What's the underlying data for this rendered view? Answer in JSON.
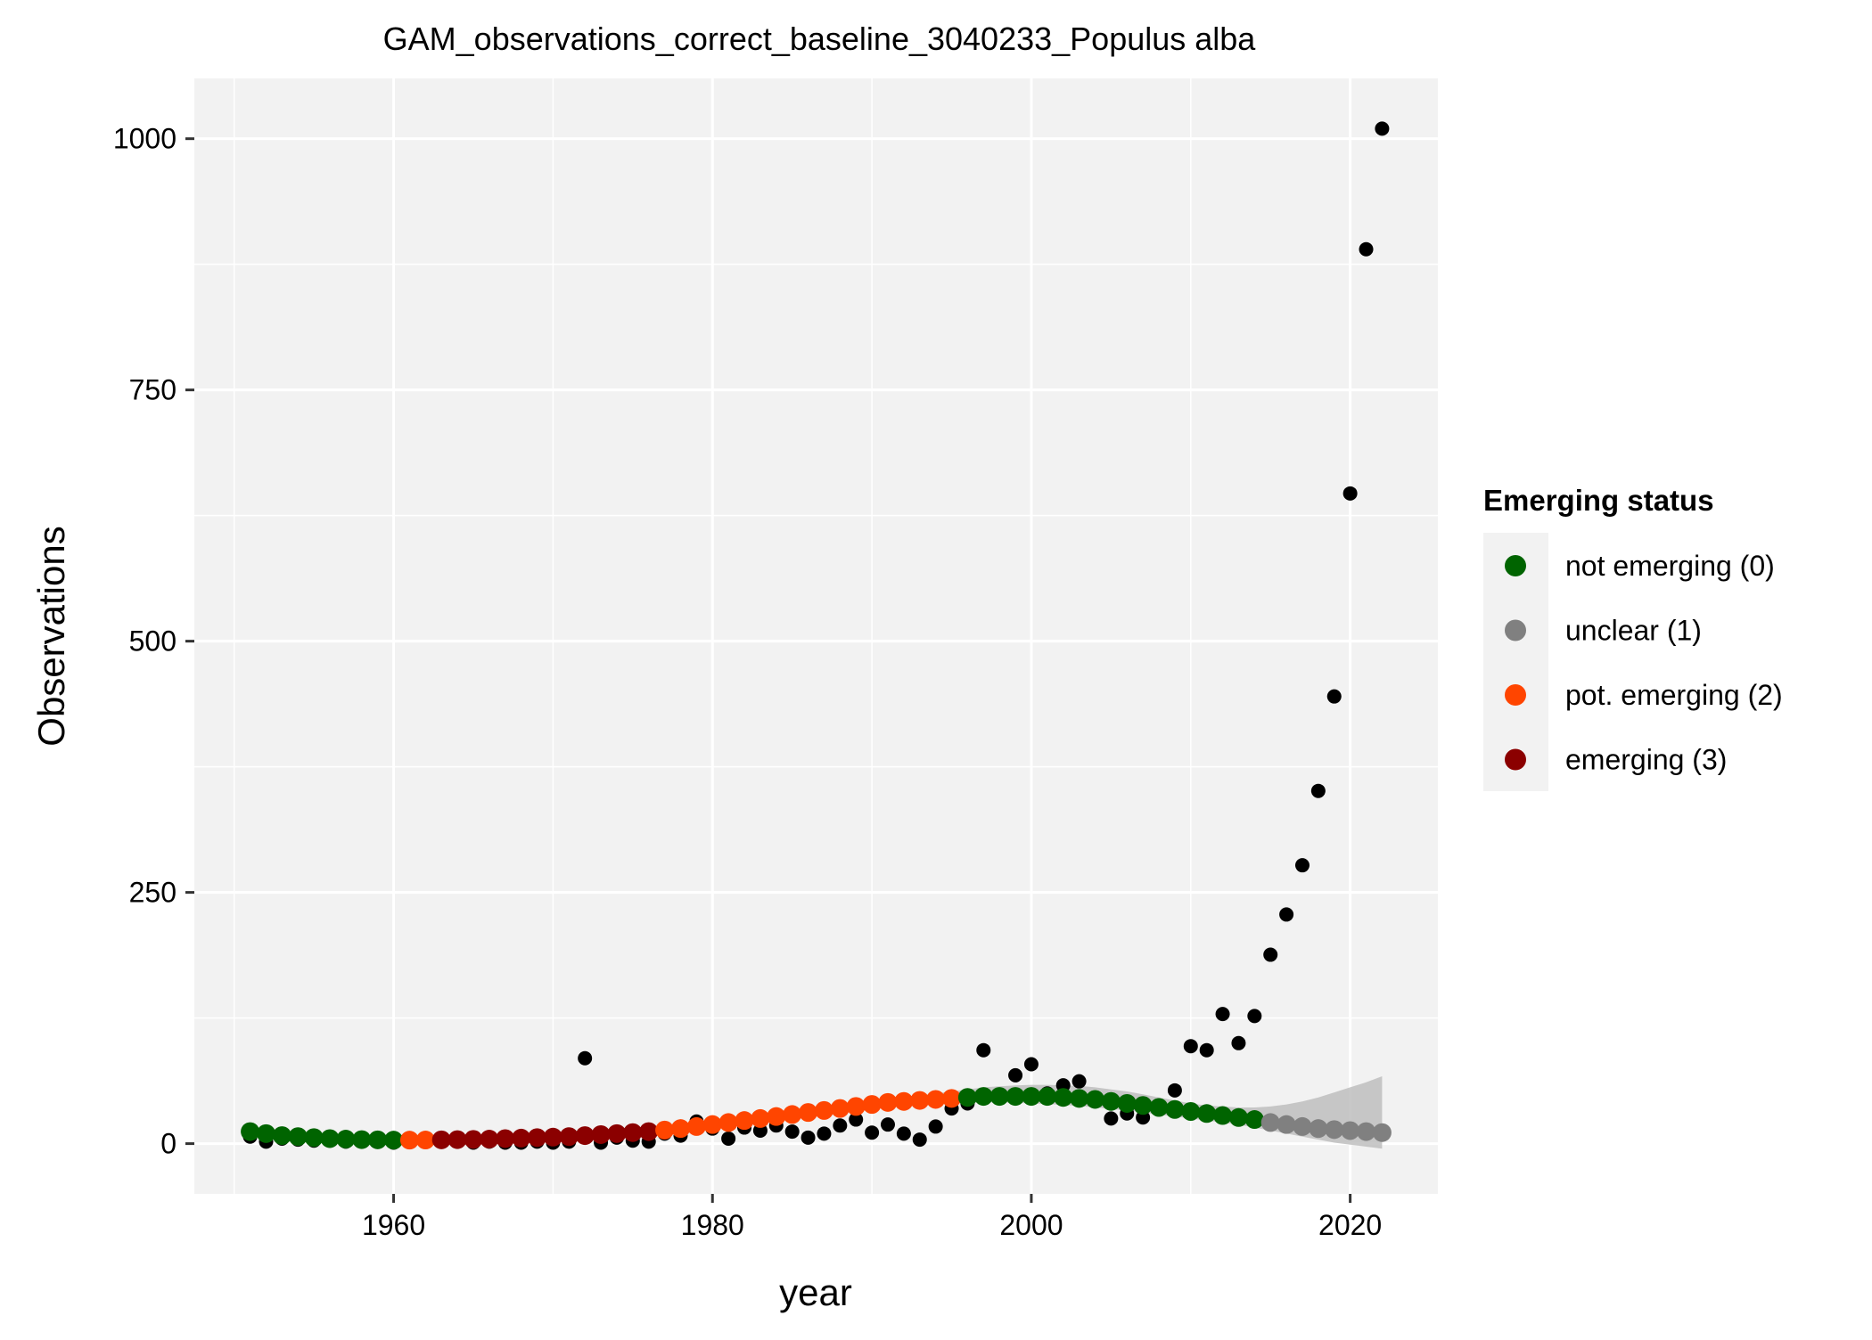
{
  "chart_data": {
    "type": "scatter",
    "title": "GAM_observations_correct_baseline_3040233_Populus alba",
    "xlabel": "year",
    "ylabel": "Observations",
    "xlim": [
      1947.5,
      2025.5
    ],
    "ylim": [
      -50,
      1060
    ],
    "x_ticks": [
      1960,
      1980,
      2000,
      2020
    ],
    "y_ticks": [
      0,
      250,
      500,
      750,
      1000
    ],
    "grid": true,
    "legend": {
      "title": "Emerging status",
      "position": "right",
      "items": [
        {
          "label": "not emerging (0)",
          "color": "#006400"
        },
        {
          "label": "unclear (1)",
          "color": "#808080"
        },
        {
          "label": "pot. emerging (2)",
          "color": "#FF4500"
        },
        {
          "label": "emerging (3)",
          "color": "#8B0000"
        }
      ]
    },
    "colors": {
      "panel_bg": "#F2F2F2",
      "grid": "#FFFFFF",
      "observed": "#000000",
      "ci_band": "#BEBEBE"
    },
    "observed": {
      "years": [
        1951,
        1952,
        1953,
        1954,
        1955,
        1956,
        1957,
        1958,
        1959,
        1960,
        1961,
        1962,
        1963,
        1964,
        1965,
        1966,
        1967,
        1968,
        1969,
        1970,
        1971,
        1972,
        1973,
        1974,
        1975,
        1976,
        1977,
        1978,
        1979,
        1980,
        1981,
        1982,
        1983,
        1984,
        1985,
        1986,
        1987,
        1988,
        1989,
        1990,
        1991,
        1992,
        1993,
        1994,
        1995,
        1996,
        1997,
        1998,
        1999,
        2000,
        2001,
        2002,
        2003,
        2004,
        2005,
        2006,
        2007,
        2008,
        2009,
        2010,
        2011,
        2012,
        2013,
        2014,
        2015,
        2016,
        2017,
        2018,
        2019,
        2020,
        2021,
        2022
      ],
      "values": [
        7,
        2,
        5,
        4,
        3,
        4,
        2,
        3,
        3,
        1,
        2,
        3,
        4,
        2,
        1,
        2,
        1,
        1,
        2,
        1,
        2,
        85,
        1,
        6,
        3,
        2,
        10,
        8,
        22,
        15,
        5,
        16,
        13,
        18,
        12,
        6,
        10,
        18,
        24,
        11,
        19,
        10,
        4,
        17,
        35,
        40,
        93,
        46,
        68,
        79,
        50,
        58,
        62,
        45,
        25,
        30,
        26,
        38,
        53,
        97,
        93,
        129,
        100,
        127,
        188,
        228,
        277,
        351,
        445,
        647,
        890,
        1010
      ]
    },
    "gam_fit": {
      "years": [
        1951,
        1952,
        1953,
        1954,
        1955,
        1956,
        1957,
        1958,
        1959,
        1960,
        1961,
        1962,
        1963,
        1964,
        1965,
        1966,
        1967,
        1968,
        1969,
        1970,
        1971,
        1972,
        1973,
        1974,
        1975,
        1976,
        1977,
        1978,
        1979,
        1980,
        1981,
        1982,
        1983,
        1984,
        1985,
        1986,
        1987,
        1988,
        1989,
        1990,
        1991,
        1992,
        1993,
        1994,
        1995,
        1996,
        1997,
        1998,
        1999,
        2000,
        2001,
        2002,
        2003,
        2004,
        2005,
        2006,
        2007,
        2008,
        2009,
        2010,
        2011,
        2012,
        2013,
        2014,
        2015,
        2016,
        2017,
        2018,
        2019,
        2020,
        2021,
        2022
      ],
      "values": [
        12,
        10,
        8,
        7,
        6,
        5,
        4.5,
        4,
        3.8,
        3.5,
        3.5,
        3.6,
        3.8,
        4,
        4.2,
        4.5,
        5,
        5.5,
        6,
        6.5,
        7,
        8,
        9,
        10,
        11,
        12,
        13.5,
        15,
        17,
        19,
        21,
        23,
        25,
        27,
        29,
        31,
        33,
        35,
        37,
        39,
        41,
        42,
        43,
        44,
        45,
        46,
        47,
        47,
        47,
        47,
        47,
        46,
        45,
        44,
        42,
        40,
        38,
        36,
        34,
        32,
        30,
        28,
        26,
        24,
        21,
        19,
        17,
        15,
        14,
        13,
        12,
        11
      ],
      "status": [
        0,
        0,
        0,
        0,
        0,
        0,
        0,
        0,
        0,
        0,
        2,
        2,
        3,
        3,
        3,
        3,
        3,
        3,
        3,
        3,
        3,
        3,
        3,
        3,
        3,
        3,
        2,
        2,
        2,
        2,
        2,
        2,
        2,
        2,
        2,
        2,
        2,
        2,
        2,
        2,
        2,
        2,
        2,
        2,
        2,
        0,
        0,
        0,
        0,
        0,
        0,
        0,
        0,
        0,
        0,
        0,
        0,
        0,
        0,
        0,
        0,
        0,
        0,
        0,
        1,
        1,
        1,
        1,
        1,
        1,
        1,
        1
      ],
      "ci_lower": [
        8,
        6,
        5,
        4,
        3,
        3,
        2.5,
        2,
        2,
        2,
        2,
        2,
        2.2,
        2.5,
        2.8,
        3,
        3.5,
        4,
        4.5,
        5,
        5.5,
        6.5,
        7.5,
        8.5,
        9.5,
        10.5,
        12,
        13.5,
        15.5,
        17.5,
        19.5,
        21.5,
        23.5,
        25.5,
        27.5,
        29.5,
        31,
        33,
        34.5,
        36,
        37.5,
        38.5,
        39.5,
        40,
        40.5,
        41,
        41,
        41,
        40.5,
        40,
        39.5,
        38.5,
        37.5,
        36,
        34.5,
        33,
        31,
        29,
        27,
        25,
        23,
        21,
        19,
        16,
        13,
        10,
        7,
        4,
        1,
        -1,
        -3,
        -5
      ],
      "ci_upper": [
        16,
        14,
        12,
        10,
        9,
        8,
        7,
        6.5,
        6,
        5.5,
        5.5,
        5.5,
        5.6,
        5.8,
        6,
        6.2,
        6.6,
        7,
        7.5,
        8,
        8.5,
        9.5,
        10.5,
        11.5,
        12.5,
        13.5,
        15,
        16.5,
        18.5,
        20.5,
        22.5,
        24.5,
        26.5,
        28.5,
        30.5,
        32.5,
        35,
        37,
        39.5,
        42,
        44.5,
        46,
        48,
        50,
        52,
        54,
        56,
        57,
        58,
        58.5,
        58.5,
        58,
        57.5,
        56,
        54,
        52,
        49,
        46,
        43,
        40,
        38,
        37,
        36,
        36,
        37,
        39,
        42,
        46,
        51,
        56,
        61,
        67
      ]
    }
  }
}
